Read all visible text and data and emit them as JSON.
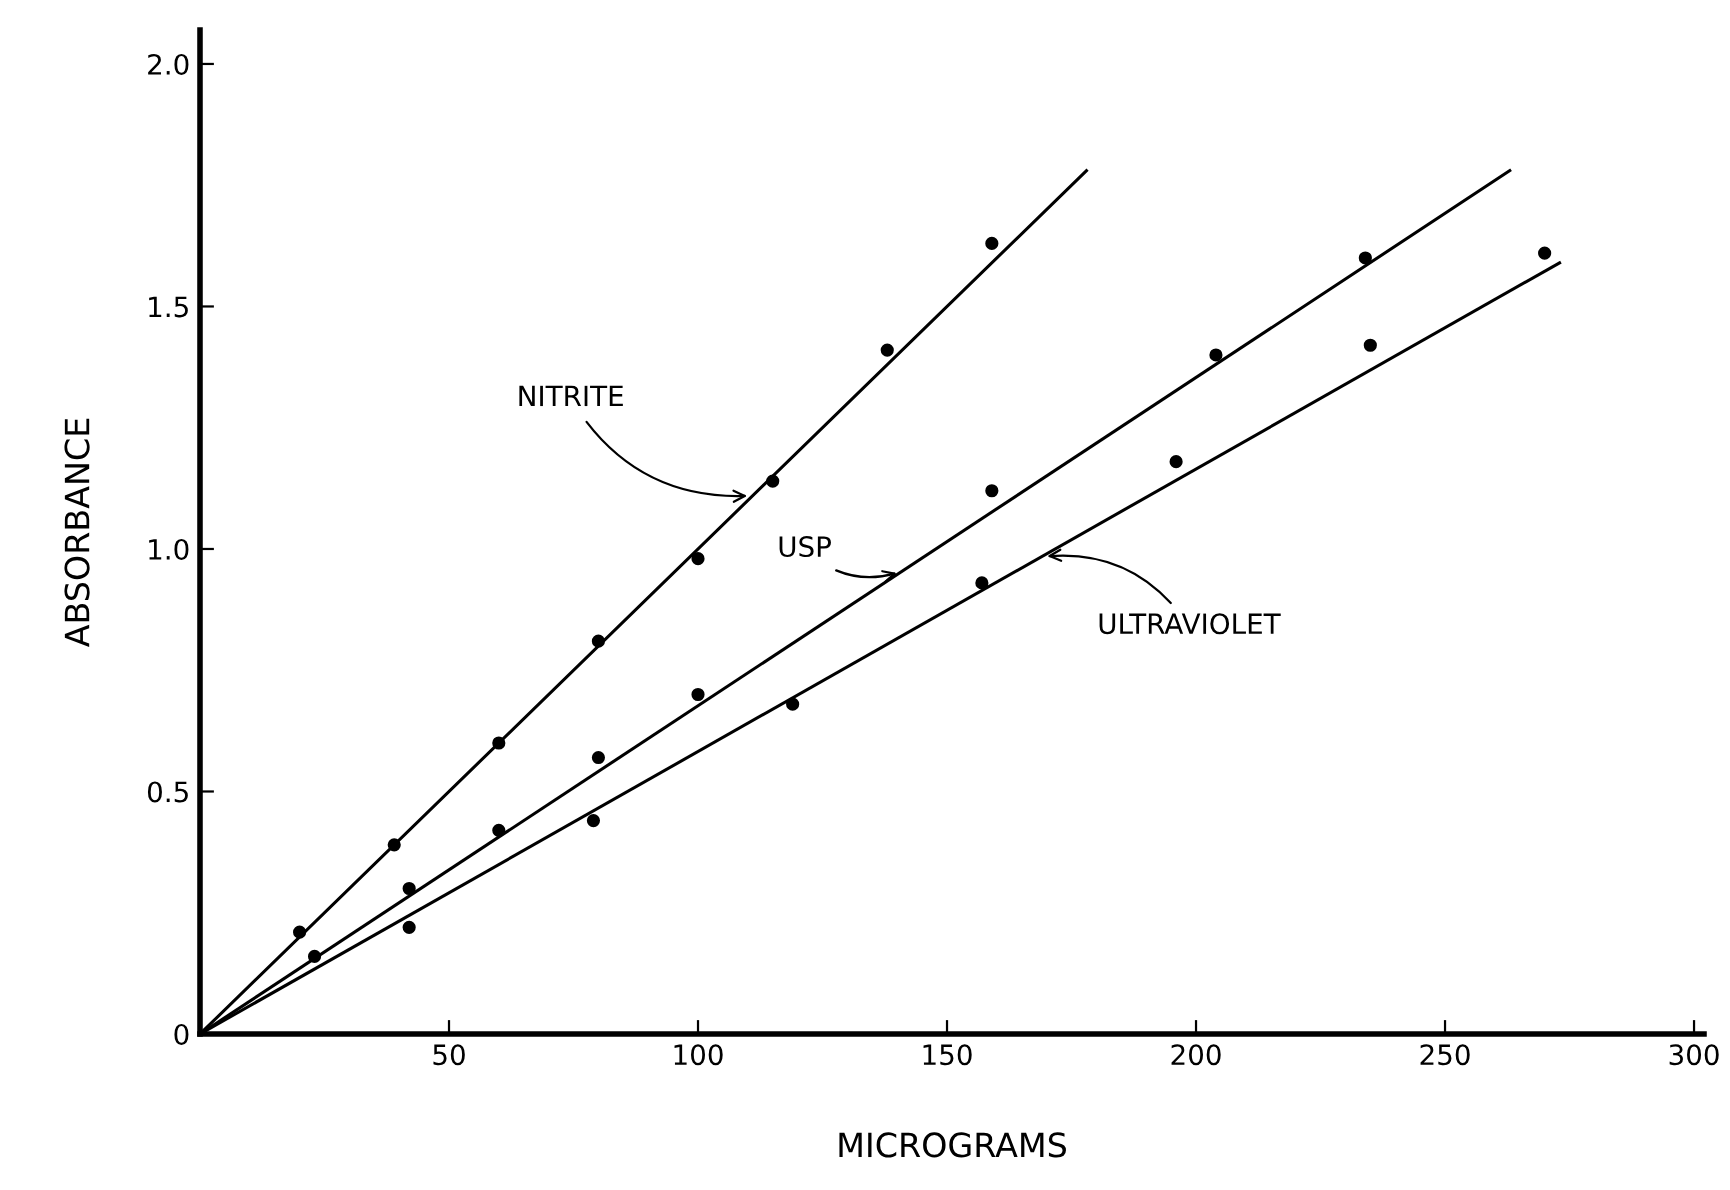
{
  "chart_data": {
    "type": "scatter",
    "xlabel": "MICROGRAMS",
    "ylabel": "ABSORBANCE",
    "xlim": [
      0,
      302
    ],
    "ylim": [
      0,
      2.07
    ],
    "xticks": [
      50,
      100,
      150,
      200,
      250,
      300
    ],
    "yticks": [
      0,
      {
        "value": 0.5,
        "label": "0.5"
      },
      {
        "value": 1.0,
        "label": "1.0"
      },
      {
        "value": 1.5,
        "label": "1.5"
      },
      {
        "value": 2.0,
        "label": "2.0"
      }
    ],
    "grid": false,
    "legend": false,
    "series": [
      {
        "marker": "circle",
        "color": "#000000",
        "x": [
          20,
          39,
          60,
          80,
          100,
          115,
          138,
          159
        ],
        "values": [
          0.21,
          0.39,
          0.6,
          0.81,
          0.98,
          1.14,
          1.41,
          1.63
        ]
      },
      {
        "marker": "circle",
        "color": "#000000",
        "x": [
          23,
          42,
          60,
          80,
          100,
          159,
          204,
          234
        ],
        "values": [
          0.16,
          0.3,
          0.42,
          0.57,
          0.7,
          1.12,
          1.4,
          1.6
        ]
      },
      {
        "marker": "circle",
        "color": "#000000",
        "x": [
          42,
          79,
          119,
          157,
          196,
          235,
          270
        ],
        "values": [
          0.22,
          0.44,
          0.68,
          0.93,
          1.18,
          1.42,
          1.61
        ]
      },
      {
        "type": "line",
        "color": "#000000",
        "x": [
          0,
          178
        ],
        "values": [
          0,
          1.78
        ]
      },
      {
        "type": "line",
        "color": "#000000",
        "x": [
          0,
          263
        ],
        "values": [
          0,
          1.78
        ]
      },
      {
        "type": "line",
        "color": "#000000",
        "x": [
          0,
          273
        ],
        "values": [
          0,
          1.59
        ]
      }
    ],
    "annotations": [
      {
        "text": "NITRITE",
        "x": 111,
        "y": 1.11
      },
      {
        "text": "USP",
        "x": 141,
        "y": 0.954
      },
      {
        "text": "ULTRAVIOLET",
        "x": 169,
        "y": 0.984
      }
    ]
  }
}
